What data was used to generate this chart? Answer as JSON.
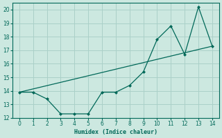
{
  "title": "",
  "xlabel": "Humidex (Indice chaleur)",
  "bg_color": "#cce8e0",
  "grid_color": "#aad0c8",
  "line_color": "#006858",
  "xlim": [
    -0.5,
    14.5
  ],
  "ylim": [
    12,
    20.5
  ],
  "xticks": [
    0,
    1,
    2,
    3,
    4,
    5,
    6,
    7,
    8,
    9,
    10,
    11,
    12,
    13,
    14
  ],
  "yticks": [
    12,
    13,
    14,
    15,
    16,
    17,
    18,
    19,
    20
  ],
  "data_x": [
    0,
    1,
    2,
    3,
    4,
    5,
    6,
    7,
    8,
    9,
    10,
    11,
    12,
    13,
    14
  ],
  "data_y": [
    13.9,
    13.9,
    13.4,
    12.3,
    12.3,
    12.3,
    13.9,
    13.9,
    14.4,
    15.4,
    17.8,
    18.8,
    16.7,
    20.2,
    17.3
  ],
  "trend_x": [
    0,
    14
  ],
  "trend_y": [
    13.9,
    17.3
  ]
}
